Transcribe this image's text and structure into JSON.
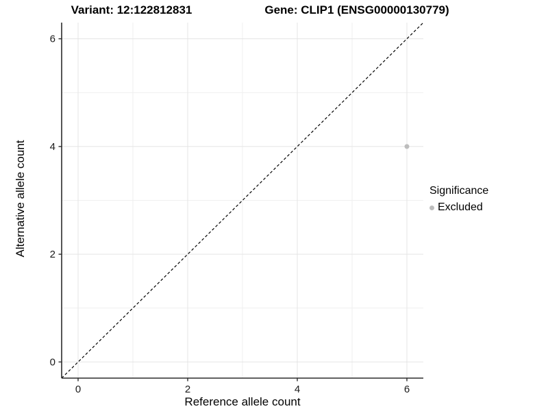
{
  "titles": {
    "variant": "Variant: 12:122812831",
    "gene": "Gene: CLIP1 (ENSG00000130779)"
  },
  "chart_data": {
    "type": "scatter",
    "title": "Variant: 12:122812831 | Gene: CLIP1 (ENSG00000130779)",
    "xlabel": "Reference allele count",
    "ylabel": "Alternative allele count",
    "xlim": [
      -0.3,
      6.3
    ],
    "ylim": [
      -0.3,
      6.3
    ],
    "xticks": [
      0,
      2,
      4,
      6
    ],
    "yticks": [
      0,
      2,
      4,
      6
    ],
    "minor_gridlines_x": [
      1,
      3,
      5
    ],
    "minor_gridlines_y": [
      1,
      3,
      5
    ],
    "grid": true,
    "series": [
      {
        "name": "Excluded",
        "color": "#BDBDBD",
        "points": [
          {
            "x": 6,
            "y": 4
          }
        ]
      }
    ],
    "reference_line": {
      "type": "identity y=x",
      "style": "dashed",
      "color": "#000000",
      "from": [
        -0.3,
        -0.3
      ],
      "to": [
        6.3,
        6.3
      ]
    },
    "legend": {
      "title": "Significance",
      "position": "right",
      "entries": [
        {
          "label": "Excluded",
          "color": "#BDBDBD"
        }
      ]
    },
    "style": {
      "background": "#FFFFFF",
      "grid_major_color": "#E4E4E4",
      "grid_minor_color": "#EFEFEF",
      "axis_line_color": "#2B2B2B",
      "tick_label_color": "#1A1A1A",
      "point_color": "#BDBDBD"
    }
  }
}
